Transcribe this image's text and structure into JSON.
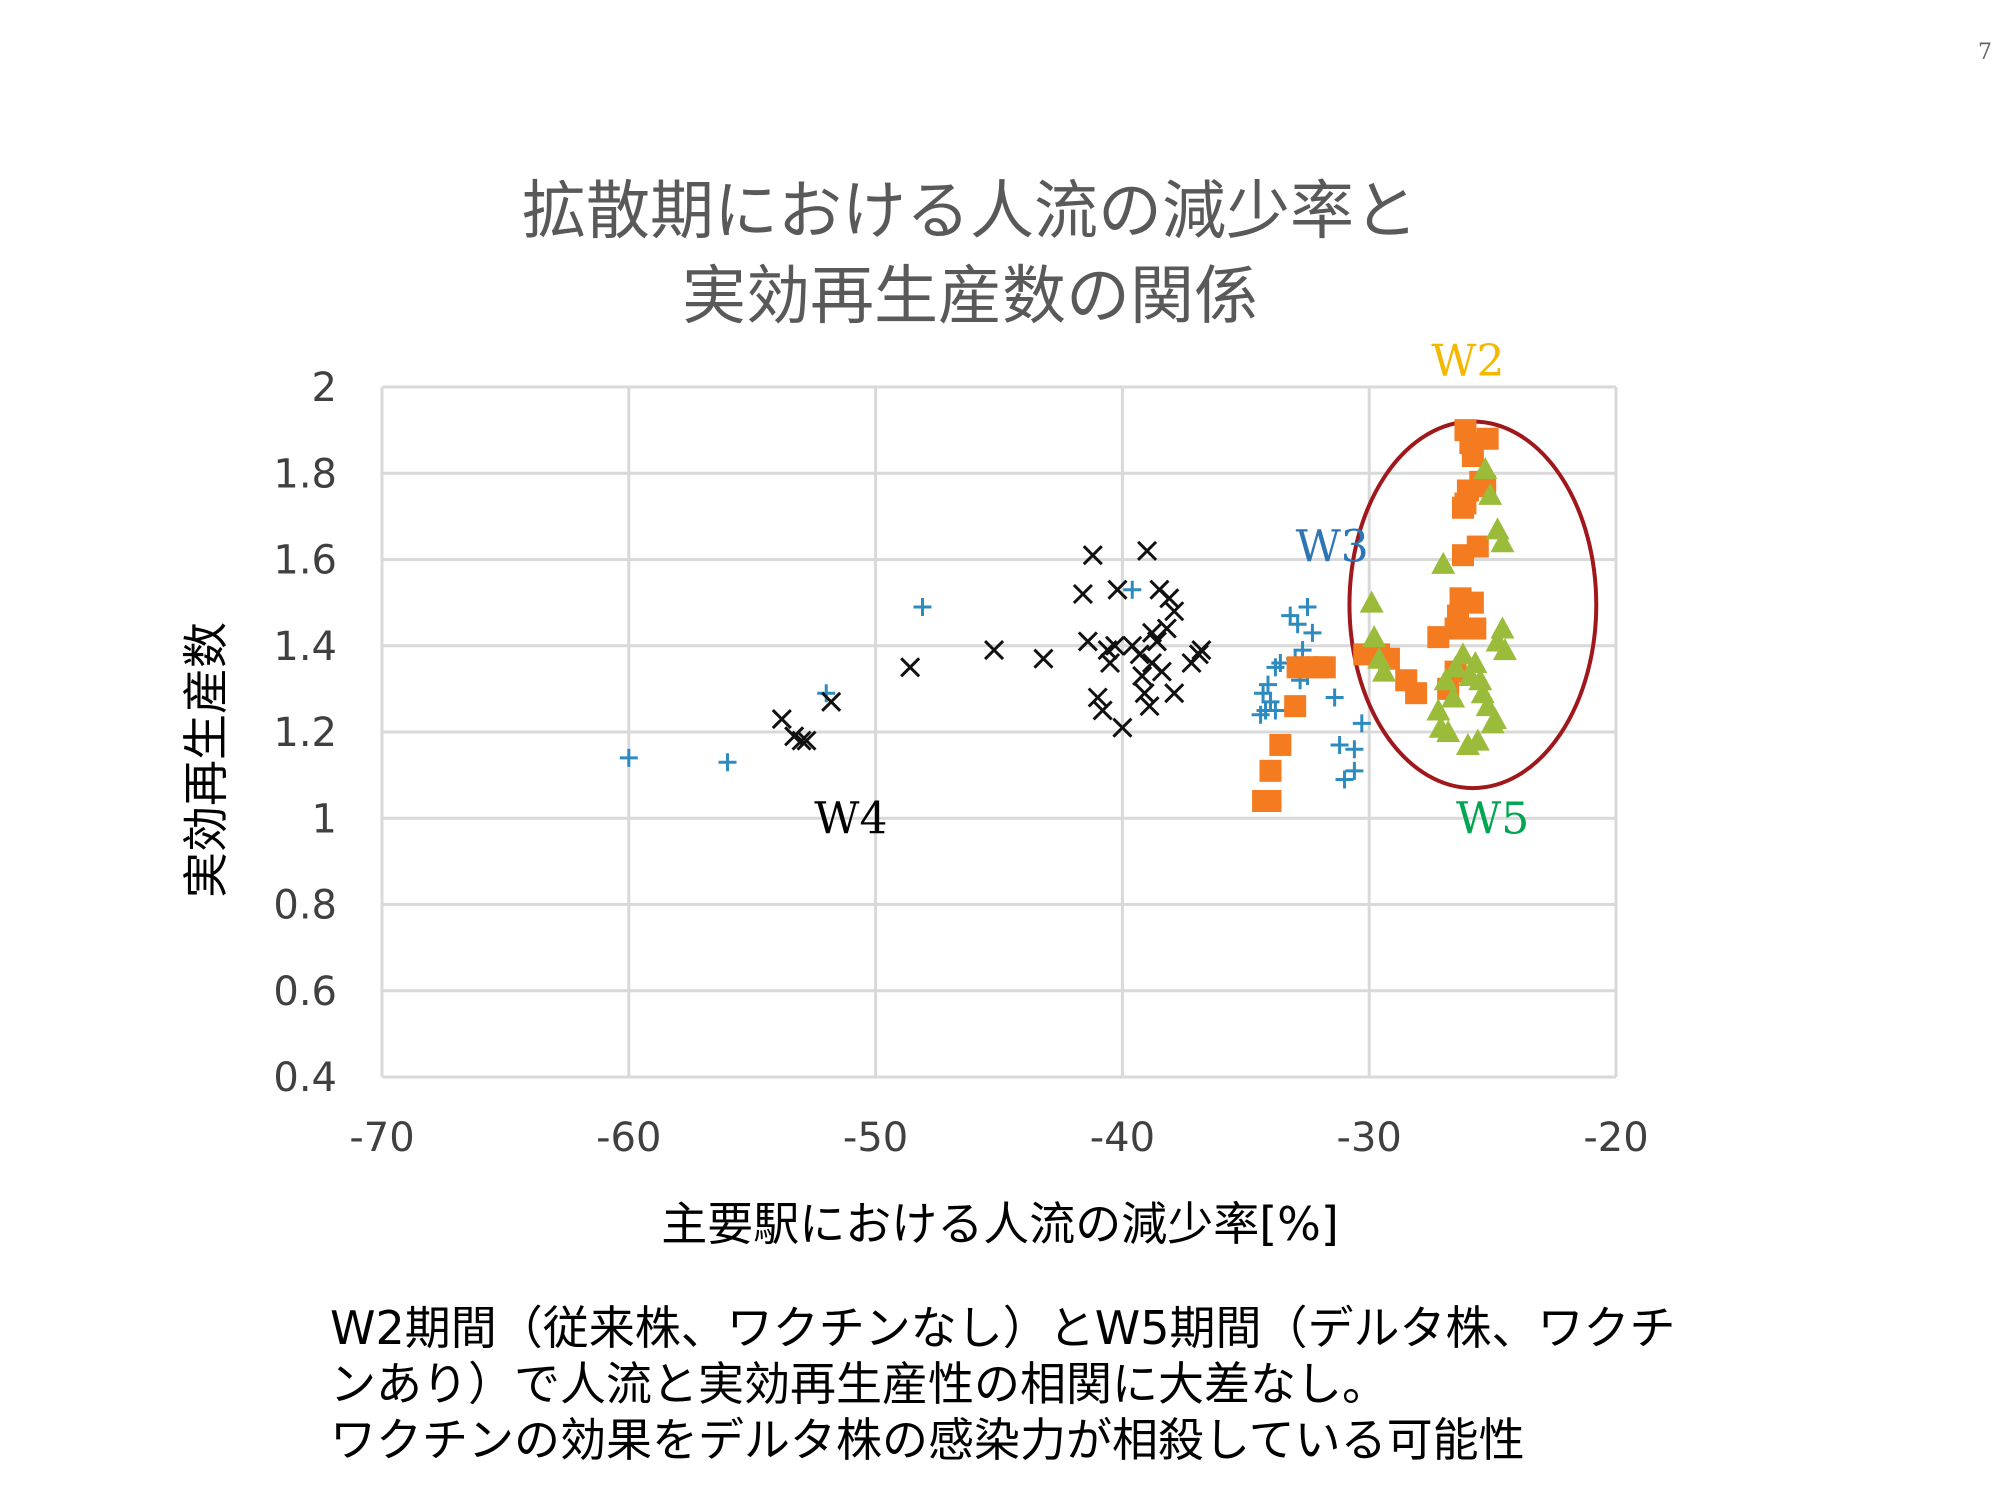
{
  "page_number": "7",
  "caption": {
    "line1": "W2期間（従来株、ワクチンなし）とW5期間（デルタ株、ワクチ",
    "line2": "ンあり）で人流と実効再生産性の相関に大差なし。",
    "line3": "ワクチンの効果をデルタ株の感染力が相殺している可能性"
  },
  "chart_data": {
    "type": "scatter",
    "title_lines": [
      "拡散期における人流の減少率と",
      "実効再生産数の関係"
    ],
    "xlabel": "主要駅における人流の減少率[%]",
    "ylabel": "実効再生産数",
    "xlim": [
      -70,
      -20
    ],
    "ylim": [
      0.4,
      2
    ],
    "xticks": [
      -70,
      -60,
      -50,
      -40,
      -30,
      -20
    ],
    "xtick_labels": [
      "-70",
      "-60",
      "-50",
      "-40",
      "-30",
      "-20"
    ],
    "yticks": [
      0.4,
      0.6,
      0.8,
      1,
      1.2,
      1.4,
      1.6,
      1.8,
      2
    ],
    "ytick_labels": [
      "0.4",
      "0.6",
      "0.8",
      "1",
      "1.2",
      "1.4",
      "1.6",
      "1.8",
      "2"
    ],
    "grid": true,
    "annotations": [
      {
        "text": "W2",
        "x": -26,
        "y": 2.06,
        "color": "#f5b800"
      },
      {
        "text": "W3",
        "x": -31.5,
        "y": 1.63,
        "color": "#2e75b6"
      },
      {
        "text": "W4",
        "x": -51,
        "y": 1.0,
        "color": "#000000"
      },
      {
        "text": "W5",
        "x": -25,
        "y": 1.0,
        "color": "#00a651"
      }
    ],
    "ellipse": {
      "cx": -25.8,
      "cy": 1.495,
      "rx": 5.0,
      "ry": 0.425,
      "color": "#a0171c"
    },
    "series": [
      {
        "marker": "plus",
        "color": "#2e8bc0",
        "points": [
          [
            -60,
            1.14
          ],
          [
            -56,
            1.13
          ],
          [
            -52,
            1.29
          ],
          [
            -48.1,
            1.49
          ],
          [
            -39.6,
            1.53
          ],
          [
            -34.4,
            1.24
          ],
          [
            -34.2,
            1.25
          ],
          [
            -34.0,
            1.27
          ],
          [
            -34.3,
            1.29
          ],
          [
            -34.1,
            1.31
          ],
          [
            -33.8,
            1.35
          ],
          [
            -33.6,
            1.36
          ],
          [
            -33.8,
            1.25
          ],
          [
            -33.2,
            1.47
          ],
          [
            -32.9,
            1.45
          ],
          [
            -32.5,
            1.49
          ],
          [
            -32.3,
            1.43
          ],
          [
            -32.7,
            1.39
          ],
          [
            -32.6,
            1.35
          ],
          [
            -32.8,
            1.32
          ],
          [
            -32.5,
            1.33
          ],
          [
            -33.0,
            1.37
          ],
          [
            -31.4,
            1.28
          ],
          [
            -31.2,
            1.17
          ],
          [
            -30.3,
            1.22
          ],
          [
            -30.6,
            1.16
          ],
          [
            -31.0,
            1.09
          ],
          [
            -30.6,
            1.11
          ]
        ]
      },
      {
        "marker": "cross",
        "color": "#111111",
        "points": [
          [
            -53.8,
            1.23
          ],
          [
            -53.3,
            1.19
          ],
          [
            -53.0,
            1.18
          ],
          [
            -52.8,
            1.18
          ],
          [
            -51.8,
            1.27
          ],
          [
            -48.6,
            1.35
          ],
          [
            -45.2,
            1.39
          ],
          [
            -43.2,
            1.37
          ],
          [
            -41.6,
            1.52
          ],
          [
            -41.2,
            1.61
          ],
          [
            -41.4,
            1.41
          ],
          [
            -41.0,
            1.28
          ],
          [
            -40.8,
            1.25
          ],
          [
            -40.6,
            1.39
          ],
          [
            -40.5,
            1.36
          ],
          [
            -40.3,
            1.4
          ],
          [
            -40.2,
            1.53
          ],
          [
            -40.0,
            1.21
          ],
          [
            -39.6,
            1.4
          ],
          [
            -39.3,
            1.38
          ],
          [
            -39.0,
            1.62
          ],
          [
            -39.2,
            1.33
          ],
          [
            -39.1,
            1.29
          ],
          [
            -38.9,
            1.26
          ],
          [
            -38.8,
            1.36
          ],
          [
            -38.8,
            1.43
          ],
          [
            -38.6,
            1.41
          ],
          [
            -38.5,
            1.53
          ],
          [
            -38.4,
            1.34
          ],
          [
            -38.2,
            1.44
          ],
          [
            -38.1,
            1.51
          ],
          [
            -37.9,
            1.48
          ],
          [
            -37.9,
            1.29
          ],
          [
            -37.2,
            1.36
          ],
          [
            -36.9,
            1.38
          ],
          [
            -36.8,
            1.39
          ]
        ]
      },
      {
        "marker": "square",
        "color": "#f47b20",
        "points": [
          [
            -34.3,
            1.04
          ],
          [
            -34.0,
            1.04
          ],
          [
            -34.0,
            1.11
          ],
          [
            -33.6,
            1.17
          ],
          [
            -33.0,
            1.26
          ],
          [
            -32.9,
            1.35
          ],
          [
            -32.5,
            1.35
          ],
          [
            -32.1,
            1.35
          ],
          [
            -31.8,
            1.35
          ],
          [
            -30.2,
            1.38
          ],
          [
            -29.6,
            1.38
          ],
          [
            -29.2,
            1.37
          ],
          [
            -28.5,
            1.32
          ],
          [
            -28.1,
            1.29
          ],
          [
            -27.2,
            1.42
          ],
          [
            -26.8,
            1.3
          ],
          [
            -26.5,
            1.34
          ],
          [
            -26.5,
            1.44
          ],
          [
            -26.4,
            1.47
          ],
          [
            -26.3,
            1.51
          ],
          [
            -26.2,
            1.61
          ],
          [
            -26.2,
            1.72
          ],
          [
            -26.1,
            1.73
          ],
          [
            -26.0,
            1.76
          ],
          [
            -26.1,
            1.9
          ],
          [
            -25.9,
            1.87
          ],
          [
            -25.8,
            1.84
          ],
          [
            -25.6,
            1.63
          ],
          [
            -25.8,
            1.5
          ],
          [
            -25.7,
            1.44
          ],
          [
            -25.5,
            1.78
          ],
          [
            -25.3,
            1.77
          ],
          [
            -25.2,
            1.88
          ]
        ]
      },
      {
        "marker": "triangle",
        "color": "#9bbb3b",
        "points": [
          [
            -29.9,
            1.5
          ],
          [
            -29.8,
            1.42
          ],
          [
            -29.6,
            1.37
          ],
          [
            -29.4,
            1.34
          ],
          [
            -27.0,
            1.59
          ],
          [
            -27.2,
            1.25
          ],
          [
            -27.1,
            1.21
          ],
          [
            -26.8,
            1.2
          ],
          [
            -26.9,
            1.32
          ],
          [
            -26.6,
            1.28
          ],
          [
            -26.5,
            1.35
          ],
          [
            -26.2,
            1.38
          ],
          [
            -26.0,
            1.17
          ],
          [
            -25.9,
            1.33
          ],
          [
            -25.7,
            1.36
          ],
          [
            -25.6,
            1.18
          ],
          [
            -25.5,
            1.32
          ],
          [
            -25.4,
            1.29
          ],
          [
            -25.2,
            1.26
          ],
          [
            -25.0,
            1.22
          ],
          [
            -24.8,
            1.41
          ],
          [
            -24.6,
            1.44
          ],
          [
            -24.5,
            1.39
          ],
          [
            -24.9,
            1.23
          ],
          [
            -25.3,
            1.81
          ],
          [
            -25.1,
            1.75
          ],
          [
            -24.8,
            1.67
          ],
          [
            -24.6,
            1.64
          ]
        ]
      }
    ]
  }
}
